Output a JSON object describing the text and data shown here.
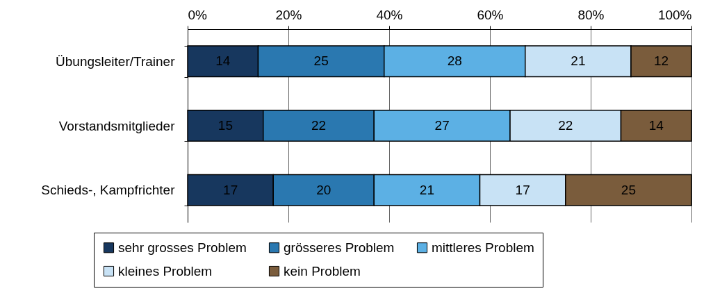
{
  "chart_data": {
    "type": "bar",
    "orientation": "horizontal",
    "stacked": true,
    "data_labels": true,
    "grid": "x",
    "legend": "bottom",
    "categories": [
      "Übungsleiter/Trainer",
      "Vorstandsmitglieder",
      "Schieds-, Kampfrichter"
    ],
    "series": [
      {
        "name": "sehr grosses Problem",
        "color": "#17375e",
        "values": [
          14,
          15,
          17
        ]
      },
      {
        "name": "grösseres Problem",
        "color": "#2a78b0",
        "values": [
          25,
          22,
          20
        ]
      },
      {
        "name": "mittleres Problem",
        "color": "#5cb0e4",
        "values": [
          28,
          27,
          21
        ]
      },
      {
        "name": "kleines Problem",
        "color": "#c8e2f5",
        "values": [
          21,
          22,
          17
        ]
      },
      {
        "name": "kein Problem",
        "color": "#7a5c3c",
        "values": [
          12,
          14,
          25
        ]
      }
    ],
    "xlim": [
      0,
      100
    ],
    "xticks": [
      {
        "value": 0,
        "label": "0%"
      },
      {
        "value": 20,
        "label": "20%"
      },
      {
        "value": 40,
        "label": "40%"
      },
      {
        "value": 60,
        "label": "60%"
      },
      {
        "value": 80,
        "label": "80%"
      },
      {
        "value": 100,
        "label": "100%"
      }
    ]
  }
}
